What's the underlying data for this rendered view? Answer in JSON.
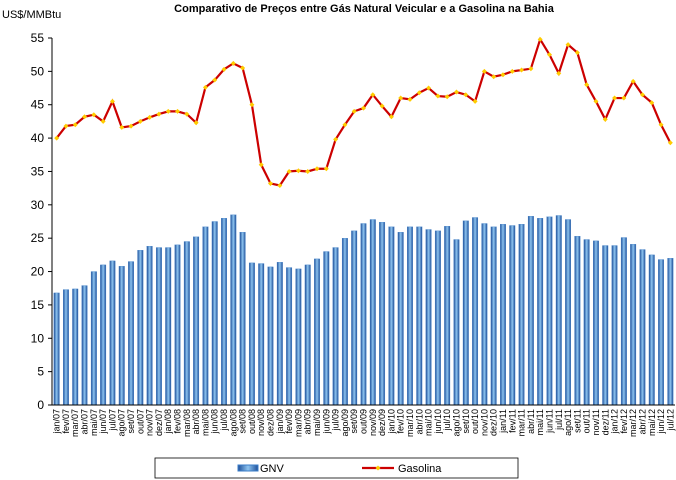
{
  "chart_data": {
    "type": "bar_line",
    "title": "Comparativo de Preços entre Gás Natural Veicular e a Gasolina na Bahia",
    "y_label": "US$/MMBtu",
    "categories": [
      "jan/07",
      "fev/07",
      "mar/07",
      "abr/07",
      "mai/07",
      "jun/07",
      "jul/07",
      "ago/07",
      "set/07",
      "out/07",
      "nov/07",
      "dez/07",
      "jan/08",
      "fev/08",
      "mar/08",
      "abr/08",
      "mai/08",
      "jun/08",
      "jul/08",
      "ago/08",
      "set/08",
      "out/08",
      "nov/08",
      "dez/08",
      "jan/09",
      "fev/09",
      "mar/09",
      "abr/09",
      "mai/09",
      "jun/09",
      "jul/09",
      "ago/09",
      "set/09",
      "out/09",
      "nov/09",
      "dez/09",
      "jan/10",
      "fev/10",
      "mar/10",
      "abr/10",
      "mai/10",
      "jun/10",
      "jul/10",
      "ago/10",
      "set/10",
      "out/10",
      "nov/10",
      "dez/10",
      "jan/11",
      "fev/11",
      "mar/11",
      "abr/11",
      "mai/11",
      "jun/11",
      "jul/11",
      "ago/11",
      "set/11",
      "out/11",
      "nov/11",
      "dez/11",
      "jan/12",
      "fev/12",
      "mar/12",
      "abr/12",
      "mai/12",
      "jun/12",
      "jul/12"
    ],
    "series": [
      {
        "name": "GNV",
        "type": "bar",
        "color": "#3a7dc8",
        "values": [
          16.8,
          17.3,
          17.4,
          17.9,
          20,
          21,
          21.6,
          20.8,
          21.5,
          23.2,
          23.8,
          23.6,
          23.6,
          24,
          24.5,
          25.2,
          26.7,
          27.5,
          28,
          28.5,
          25.9,
          21.3,
          21.2,
          20.7,
          21.4,
          20.6,
          20.4,
          21,
          21.9,
          23,
          23.6,
          25,
          26.1,
          27.2,
          27.8,
          27.4,
          26.7,
          25.9,
          26.7,
          26.7,
          26.3,
          26.1,
          26.8,
          24.8,
          27.6,
          28.1,
          27.2,
          26.7,
          27.1,
          26.9,
          27.1,
          28.3,
          28,
          28.2,
          28.4,
          27.8,
          25.3,
          24.8,
          24.6,
          23.9,
          23.9,
          25.1,
          24.1,
          23.3,
          22.5,
          21.8,
          22
        ]
      },
      {
        "name": "Gasolina",
        "type": "line",
        "color": "#cc0000",
        "marker_color": "#ffcc00",
        "values": [
          40,
          41.8,
          42,
          43.2,
          43.5,
          42.5,
          45.5,
          41.6,
          41.8,
          42.5,
          43.1,
          43.6,
          44,
          44,
          43.6,
          42.3,
          47.6,
          48.7,
          50.3,
          51.2,
          50.5,
          45,
          36,
          33.2,
          32.9,
          35,
          35.1,
          35,
          35.4,
          35.4,
          39.8,
          42,
          44,
          44.5,
          46.5,
          44.8,
          43.2,
          46,
          45.8,
          46.8,
          47.5,
          46.3,
          46.2,
          46.9,
          46.5,
          45.5,
          50,
          49.2,
          49.5,
          50,
          50.2,
          50.4,
          54.8,
          52.5,
          49.7,
          54,
          52.8,
          48,
          45.5,
          42.8,
          46,
          46,
          48.5,
          46.5,
          45.3,
          42,
          39.3
        ]
      }
    ],
    "ylim": [
      0,
      55
    ],
    "yticks": [
      0,
      5,
      10,
      15,
      20,
      25,
      30,
      35,
      40,
      45,
      50,
      55
    ],
    "grid": false
  }
}
